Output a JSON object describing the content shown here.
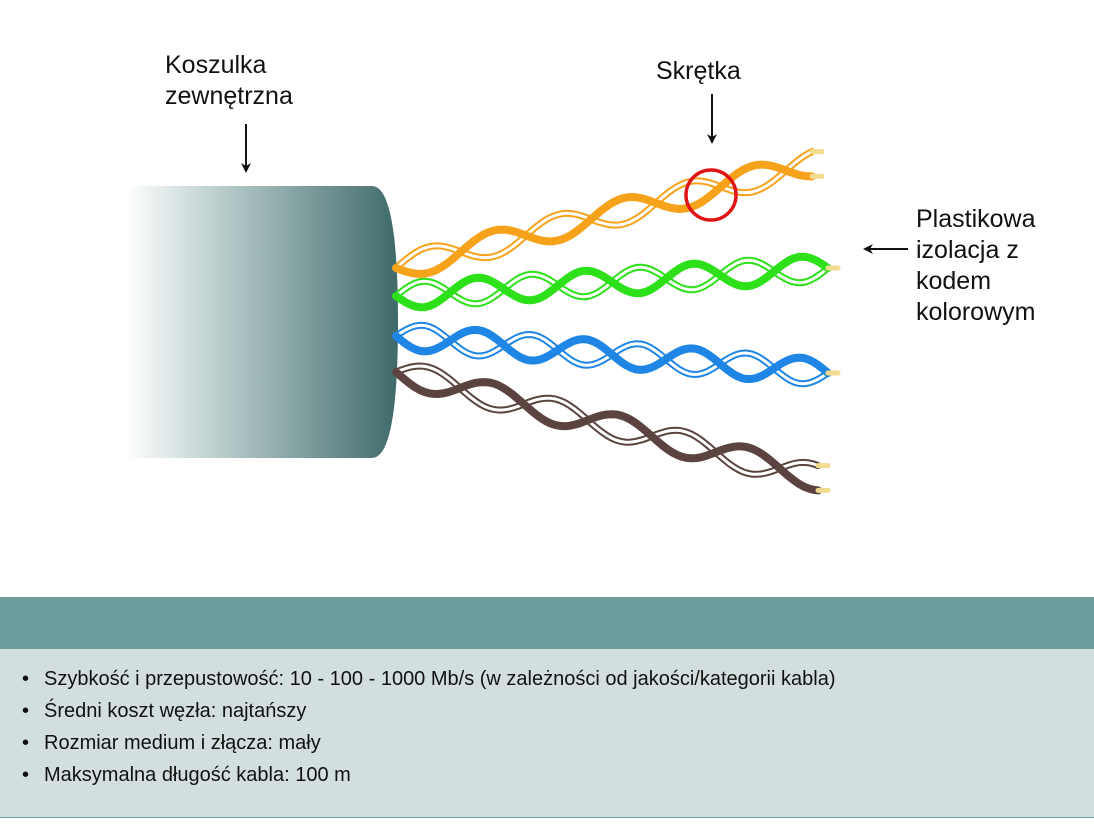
{
  "labels": {
    "jacket": "Koszulka\nzewnętrzna",
    "twist": "Skrętka",
    "insulation": "Plastikowa\nizolacja z\nkodem\nkolorowym"
  },
  "colors": {
    "orange": "#f7a21b",
    "green": "#2de019",
    "blue": "#1f86e6",
    "brown": "#5b4440",
    "jacket_dark": "#3f6a6a",
    "highlight_circle": "#e01414",
    "wire_tip": "#f1db8e",
    "panel_header": "#6a9c9c",
    "panel_body": "#d3dfdf"
  },
  "info": {
    "items": [
      "Szybkość i przepustowość: 10 - 100 - 1000 Mb/s (w zależności od jakości/kategorii kabla)",
      "Średni koszt węzła: najtańszy",
      "Rozmiar medium i złącza: mały",
      "Maksymalna długość kabla: 100 m"
    ]
  }
}
